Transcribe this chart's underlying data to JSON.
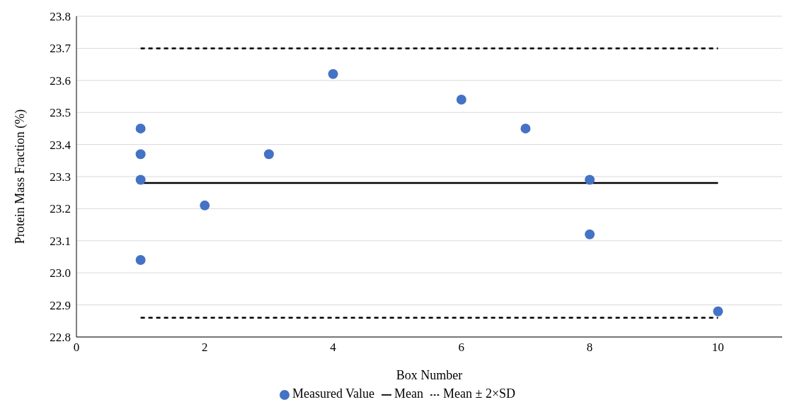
{
  "chart_data": {
    "type": "scatter",
    "xlabel": "Box Number",
    "ylabel": "Protein Mass Fraction (%)",
    "xlim": [
      0,
      11
    ],
    "xticks": [
      0,
      2,
      4,
      6,
      8,
      10
    ],
    "ylim": [
      22.8,
      23.8
    ],
    "yticks": [
      {
        "value": 22.8,
        "label": "22.8"
      },
      {
        "value": 22.9,
        "label": "22.9"
      },
      {
        "value": 23,
        "label": "23.0"
      },
      {
        "value": 23.1,
        "label": "23.1"
      },
      {
        "value": 23.2,
        "label": "23.2"
      },
      {
        "value": 23.3,
        "label": "23.3"
      },
      {
        "value": 23.4,
        "label": "23.4"
      },
      {
        "value": 23.5,
        "label": "23.5"
      },
      {
        "value": 23.6,
        "label": "23.6"
      },
      {
        "value": 23.7,
        "label": "23.7"
      },
      {
        "value": 23.8,
        "label": "23.8"
      }
    ],
    "grid": "y",
    "legend": "bottom",
    "series": [
      {
        "name": "Measured Value",
        "marker": "circle",
        "color": "#4472c4",
        "x": [
          1,
          1,
          1,
          1,
          2,
          3,
          4,
          6,
          7,
          8,
          8,
          10
        ],
        "values": [
          23.45,
          23.37,
          23.29,
          23.04,
          23.21,
          23.37,
          23.62,
          23.54,
          23.45,
          23.29,
          23.12,
          22.88
        ]
      },
      {
        "name": "Mean",
        "type": "line",
        "color": "#000000",
        "line_style": "solid",
        "x": [
          1,
          10
        ],
        "values": [
          23.28,
          23.28
        ]
      },
      {
        "name": "Mean ± 2×SD",
        "type": "line",
        "color": "#000000",
        "line_style": "dashed",
        "x": [
          1,
          10
        ],
        "values": [
          23.7,
          23.7
        ]
      },
      {
        "type": "line",
        "color": "#000000",
        "line_style": "dashed",
        "x": [
          1,
          10
        ],
        "values": [
          22.86,
          22.86
        ]
      }
    ]
  }
}
